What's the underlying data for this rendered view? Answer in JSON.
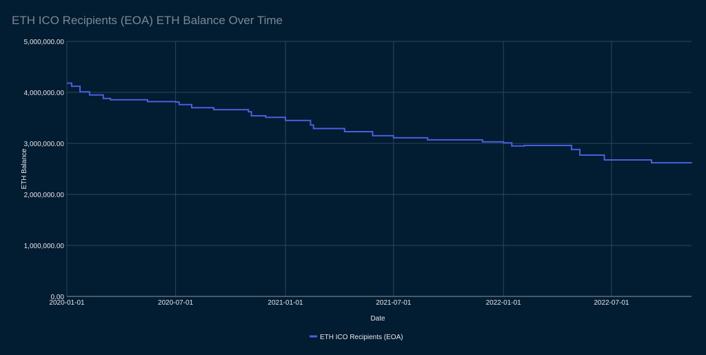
{
  "chart_data": {
    "type": "line",
    "title": "ETH ICO Recipients (EOA) ETH Balance Over Time",
    "xlabel": "Date",
    "ylabel": "ETH Balance",
    "ylim": [
      0,
      5000000
    ],
    "xlim": [
      "2020-01-01",
      "2022-11-12"
    ],
    "yticks": [
      "0.00",
      "1,000,000.00",
      "2,000,000.00",
      "3,000,000.00",
      "4,000,000.00",
      "5,000,000.00"
    ],
    "xticks": [
      "2020-01-01",
      "2020-07-01",
      "2021-01-01",
      "2021-07-01",
      "2022-01-01",
      "2022-07-01"
    ],
    "grid": true,
    "legend_position": "bottom",
    "series": [
      {
        "name": "ETH ICO Recipients (EOA)",
        "color": "#4a5fe0",
        "step": true,
        "x": [
          "2020-01-01",
          "2020-01-09",
          "2020-01-23",
          "2020-02-08",
          "2020-03-02",
          "2020-03-14",
          "2020-05-15",
          "2020-07-01",
          "2020-07-07",
          "2020-07-28",
          "2020-09-03",
          "2020-10-31",
          "2020-11-05",
          "2020-11-29",
          "2021-01-01",
          "2021-02-12",
          "2021-02-17",
          "2021-04-10",
          "2021-05-27",
          "2021-07-01",
          "2021-08-27",
          "2021-11-27",
          "2022-01-01",
          "2022-01-15",
          "2022-02-05",
          "2022-04-25",
          "2022-05-09",
          "2022-06-19",
          "2022-09-06",
          "2022-11-12"
        ],
        "y": [
          4180000,
          4120000,
          4010000,
          3950000,
          3880000,
          3855000,
          3820000,
          3810000,
          3760000,
          3700000,
          3660000,
          3620000,
          3540000,
          3510000,
          3450000,
          3360000,
          3290000,
          3230000,
          3150000,
          3110000,
          3070000,
          3030000,
          3010000,
          2950000,
          2960000,
          2880000,
          2770000,
          2675000,
          2620000,
          2610000
        ]
      }
    ]
  }
}
